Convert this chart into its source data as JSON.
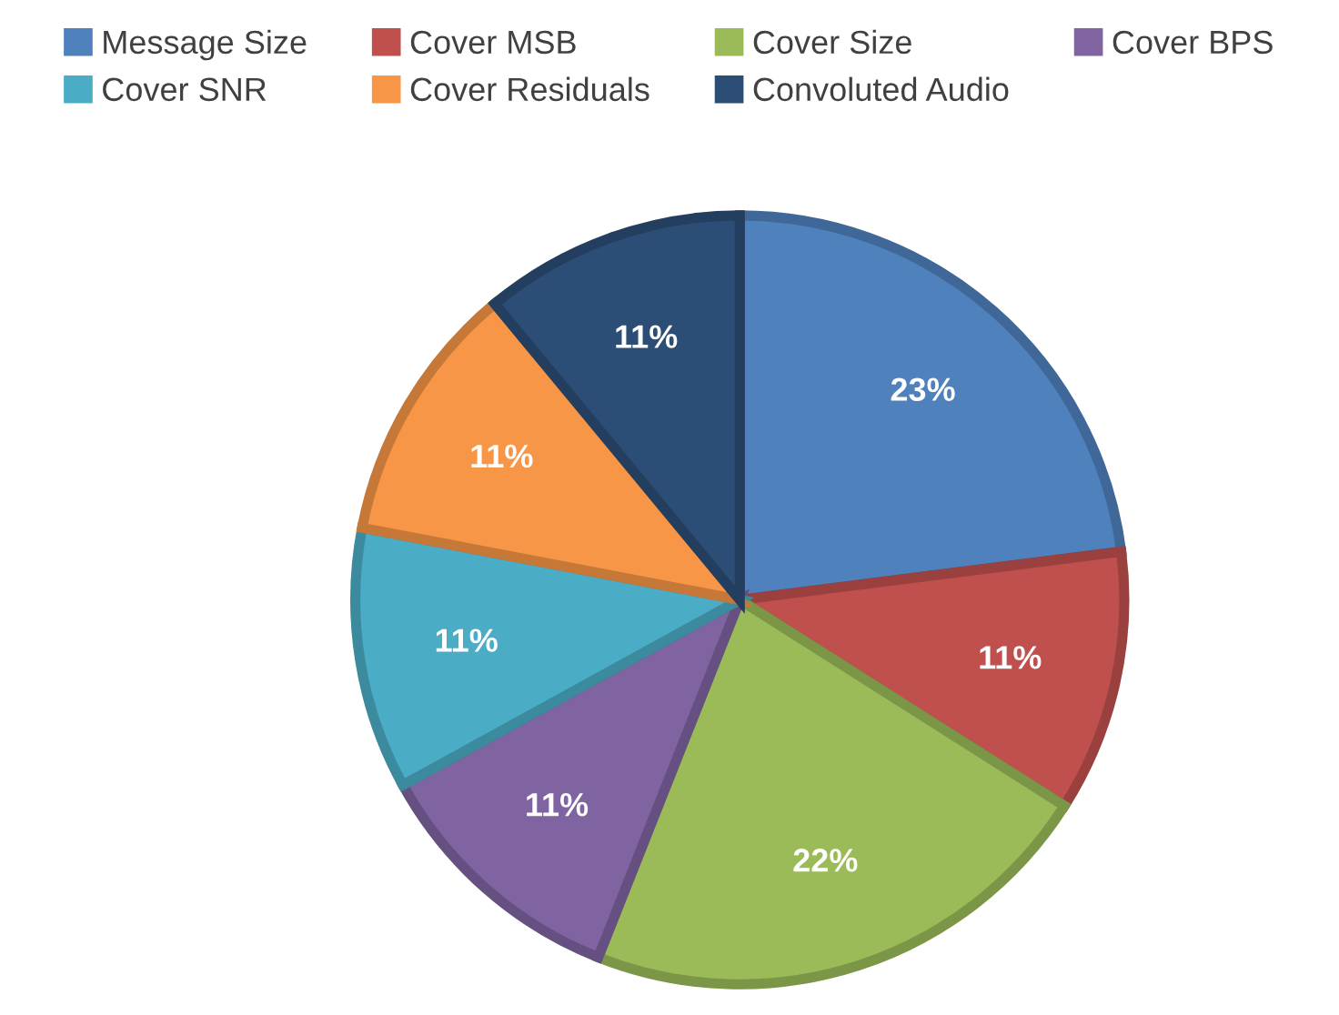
{
  "chart_data": {
    "type": "pie",
    "categories": [
      "Message Size",
      "Cover MSB",
      "Cover Size",
      "Cover BPS",
      "Cover SNR",
      "Cover Residuals",
      "Convoluted Audio"
    ],
    "values": [
      23,
      11,
      22,
      11,
      11,
      11,
      11
    ],
    "colors": [
      "#4f81bd",
      "#c0504d",
      "#9bbb59",
      "#8064a2",
      "#4bacc6",
      "#f79646",
      "#2c4d75"
    ],
    "value_labels": [
      "23%",
      "11%",
      "22%",
      "11%",
      "11%",
      "11%",
      "11%"
    ],
    "legend": "top"
  }
}
